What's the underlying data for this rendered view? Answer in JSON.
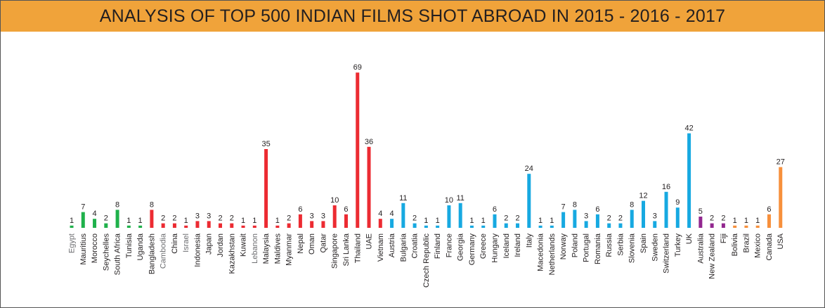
{
  "title": "ANALYSIS OF TOP 500 INDIAN FILMS SHOT ABROAD IN 2015 - 2016 - 2017",
  "colors": {
    "header_bg": "#f0a33a",
    "africa": "#1fb14b",
    "asia": "#ec2b32",
    "europe": "#17a9e1",
    "oceania": "#92278f",
    "americas": "#f7903c",
    "label_dark": "#231f20",
    "label_grey": "#6d6e71"
  },
  "chart_data": {
    "type": "bar",
    "title": "ANALYSIS OF TOP 500 INDIAN FILMS SHOT ABROAD IN 2015 - 2016 - 2017",
    "xlabel": "",
    "ylabel": "",
    "ylim": [
      0,
      70
    ],
    "grid": false,
    "legend": "none",
    "categories": [
      "Egypt",
      "Mauritius",
      "Morocco",
      "Seychelles",
      "South Africa",
      "Tunisia",
      "Uganda",
      "Bangladesh",
      "Cambodia",
      "China",
      "Israel",
      "Indonesia",
      "Japan",
      "Jordan",
      "Kazakhstan",
      "Kuwait",
      "Lebanon",
      "Malaysia",
      "Maldives",
      "Myanmar",
      "Nepal",
      "Oman",
      "Qatar",
      "Singapore",
      "Sri Lanka",
      "Thailand",
      "UAE",
      "Vietnam",
      "Austria",
      "Bulgaria",
      "Croatia",
      "Czech Republic",
      "Finland",
      "France",
      "Georgia",
      "Germany",
      "Greece",
      "Hungary",
      "Iceland",
      "Ireland",
      "Italy",
      "Macedonia",
      "Netherlands",
      "Norway",
      "Poland",
      "Portugal",
      "Romania",
      "Russia",
      "Serbia",
      "Slovenia",
      "Spain",
      "Sweden",
      "Switzerland",
      "Turkey",
      "UK",
      "Australia",
      "New Zealand",
      "Fiji",
      "Bolivia",
      "Brazil",
      "Mexico",
      "Canada",
      "USA"
    ],
    "values": [
      1,
      7,
      4,
      2,
      8,
      1,
      1,
      8,
      2,
      2,
      1,
      3,
      3,
      2,
      2,
      1,
      1,
      35,
      1,
      2,
      6,
      3,
      3,
      10,
      6,
      69,
      36,
      4,
      4,
      11,
      2,
      1,
      1,
      10,
      11,
      1,
      1,
      6,
      2,
      2,
      24,
      1,
      1,
      7,
      8,
      3,
      6,
      2,
      2,
      8,
      12,
      3,
      16,
      9,
      42,
      5,
      2,
      2,
      1,
      1,
      1,
      6,
      27
    ],
    "groups": [
      "africa",
      "africa",
      "africa",
      "africa",
      "africa",
      "africa",
      "africa",
      "asia",
      "asia",
      "asia",
      "asia",
      "asia",
      "asia",
      "asia",
      "asia",
      "asia",
      "asia",
      "asia",
      "asia",
      "asia",
      "asia",
      "asia",
      "asia",
      "asia",
      "asia",
      "asia",
      "asia",
      "asia",
      "europe",
      "europe",
      "europe",
      "europe",
      "europe",
      "europe",
      "europe",
      "europe",
      "europe",
      "europe",
      "europe",
      "europe",
      "europe",
      "europe",
      "europe",
      "europe",
      "europe",
      "europe",
      "europe",
      "europe",
      "europe",
      "europe",
      "europe",
      "europe",
      "europe",
      "europe",
      "europe",
      "oceania",
      "oceania",
      "oceania",
      "americas",
      "americas",
      "americas",
      "americas",
      "americas"
    ],
    "grey_labels": [
      "Egypt",
      "Cambodia",
      "Israel",
      "Lebanon"
    ]
  }
}
